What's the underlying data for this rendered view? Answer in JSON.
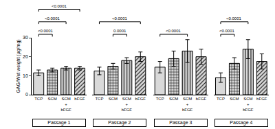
{
  "chart_data": {
    "type": "bar",
    "y_label": "GAG/Wet weight (µg/mg)",
    "categories": [
      "TCP",
      "SCM",
      "SCM + bFGF",
      "bFGF"
    ],
    "color": "#d9d9d9",
    "ylim": [
      0,
      30
    ],
    "yticks": [
      0,
      10,
      20,
      30
    ],
    "panels": [
      {
        "name": "Passage 1",
        "values": [
          11.5,
          13,
          14,
          14
        ],
        "errors": [
          1.5,
          1,
          1,
          1
        ],
        "comparisons": [
          {
            "from": "TCP",
            "to": "SCM",
            "label": "<0.0001"
          },
          {
            "from": "TCP",
            "to": "SCM + bFGF",
            "label": "<0.0001"
          },
          {
            "from": "TCP",
            "to": "bFGF",
            "label": "<0.0001"
          }
        ]
      },
      {
        "name": "Passage 2",
        "values": [
          12.5,
          15,
          18,
          20
        ],
        "errors": [
          2,
          1.5,
          1.5,
          2.5
        ],
        "comparisons": [
          {
            "from": "SCM",
            "to": "SCM + bFGF",
            "label": "0.0001"
          },
          {
            "from": "TCP",
            "to": "bFGF",
            "label": "<0.0001"
          }
        ]
      },
      {
        "name": "Passage 3",
        "values": [
          14.5,
          19,
          23,
          20
        ],
        "errors": [
          3,
          4,
          6,
          4
        ],
        "comparisons": [
          {
            "from": "TCP",
            "to": "SCM + bFGF",
            "label": "<0.0001"
          }
        ]
      },
      {
        "name": "Passage 4",
        "values": [
          9,
          16.5,
          24,
          17.5
        ],
        "errors": [
          2.5,
          3,
          5,
          4
        ],
        "comparisons": [
          {
            "from": "TCP",
            "to": "SCM",
            "label": "<0.0001"
          },
          {
            "from": "TCP",
            "to": "SCM + bFGF",
            "label": "<0.0001"
          }
        ]
      }
    ]
  }
}
